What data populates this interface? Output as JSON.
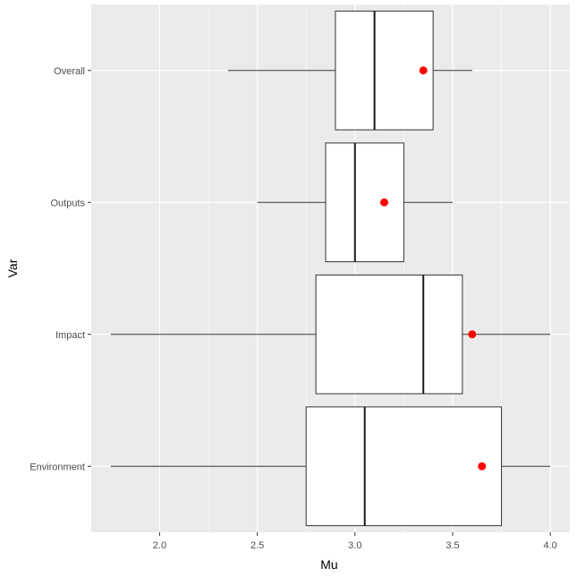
{
  "chart_data": {
    "type": "boxplot",
    "orientation": "horizontal",
    "xlabel": "Mu",
    "ylabel": "Var",
    "xlim": [
      1.75,
      4.0
    ],
    "x_ticks": [
      "2.0",
      "2.5",
      "3.0",
      "3.5",
      "4.0"
    ],
    "grid": true,
    "colors": {
      "panel_background": "#ebebeb",
      "grid_major": "#ffffff",
      "box_fill": "#ffffff",
      "box_stroke": "#333333",
      "mean_point": "#ff0000"
    },
    "categories": [
      "Overall",
      "Outputs",
      "Impact",
      "Environment"
    ],
    "boxes": [
      {
        "category": "Overall",
        "min": 2.35,
        "q1": 2.9,
        "median": 3.1,
        "q3": 3.4,
        "max": 3.6,
        "mean": 3.35
      },
      {
        "category": "Outputs",
        "min": 2.5,
        "q1": 2.85,
        "median": 3.0,
        "q3": 3.25,
        "max": 3.5,
        "mean": 3.15
      },
      {
        "category": "Impact",
        "min": 1.75,
        "q1": 2.8,
        "median": 3.35,
        "q3": 3.55,
        "max": 4.0,
        "mean": 3.6
      },
      {
        "category": "Environment",
        "min": 1.75,
        "q1": 2.75,
        "median": 3.05,
        "q3": 3.75,
        "max": 4.0,
        "mean": 3.65
      }
    ]
  }
}
